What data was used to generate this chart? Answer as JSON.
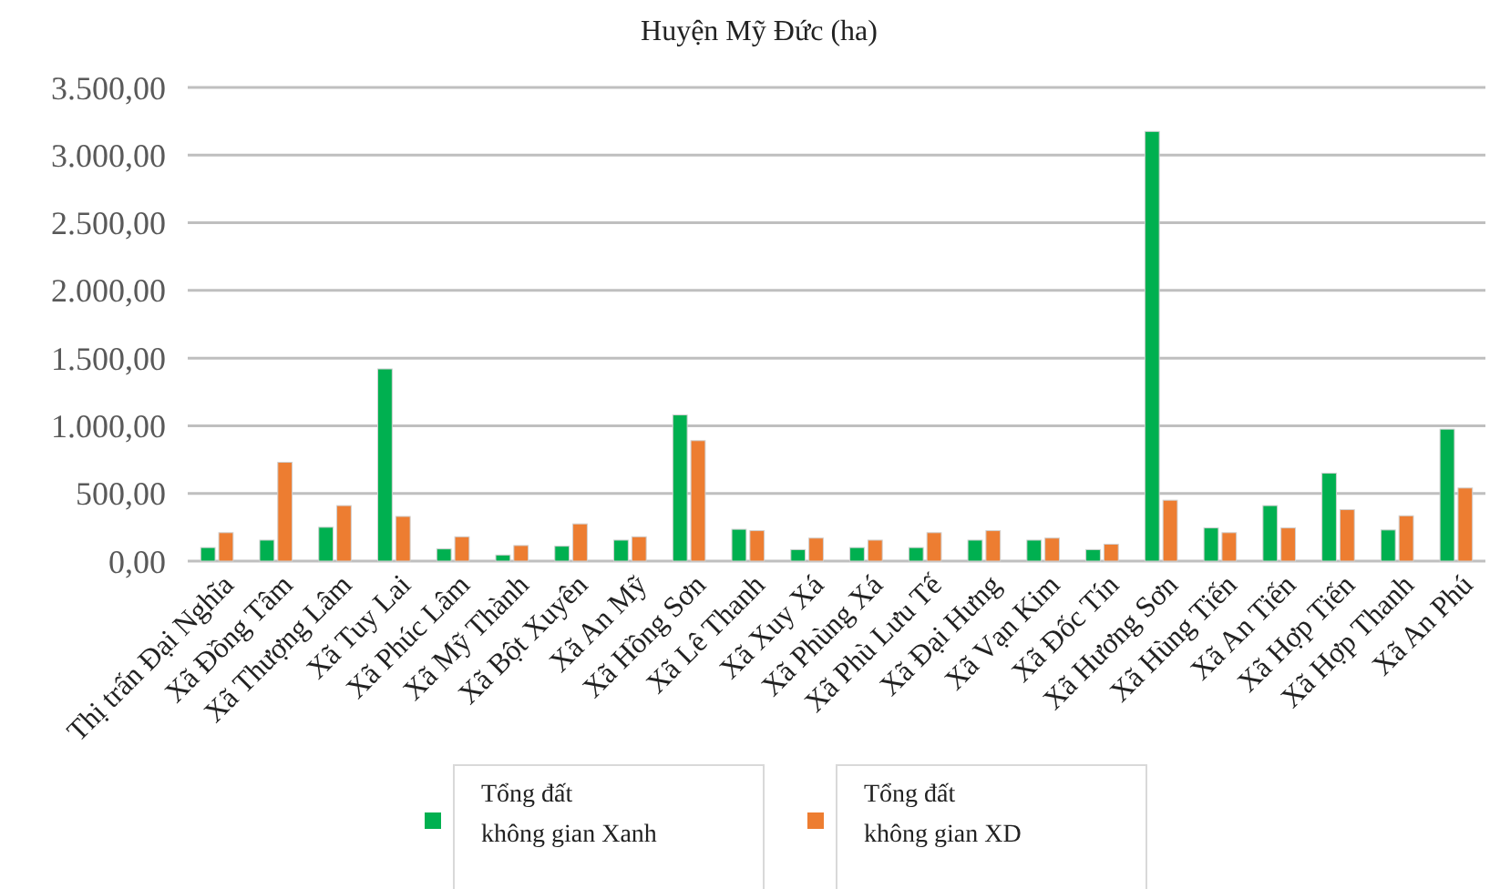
{
  "chart_data": {
    "type": "bar",
    "title": "Huyện Mỹ Đức (ha)",
    "categories": [
      "Thị trấn Đại Nghĩa",
      "Xã Đồng Tâm",
      "Xã Thượng Lâm",
      "Xã Tuy Lai",
      "Xã Phúc Lâm",
      "Xã Mỹ Thành",
      "Xã Bột Xuyên",
      "Xã An Mỹ",
      "Xã Hồng Sơn",
      "Xã Lê Thanh",
      "Xã Xuy Xá",
      "Xã Phùng Xá",
      "Xã Phù Lưu Tế",
      "Xã Đại Hưng",
      "Xã Vạn Kim",
      "Xã Đốc Tín",
      "Xã Hương Sơn",
      "Xã Hùng Tiến",
      "Xã An Tiến",
      "Xã Hợp Tiến",
      "Xã Hợp Thanh",
      "Xã An Phú"
    ],
    "series": [
      {
        "name": "Tổng đất\nkhông gian Xanh",
        "color": "#00b050",
        "values": [
          100,
          155,
          250,
          1420,
          90,
          45,
          110,
          155,
          1080,
          235,
          85,
          100,
          100,
          155,
          155,
          85,
          3175,
          245,
          410,
          650,
          230,
          975
        ]
      },
      {
        "name": "Tổng đất\nkhông gian XD",
        "color": "#ed7d31",
        "values": [
          210,
          730,
          410,
          330,
          180,
          115,
          275,
          180,
          890,
          225,
          170,
          155,
          210,
          225,
          170,
          125,
          450,
          210,
          245,
          380,
          335,
          540
        ]
      }
    ],
    "ylim": [
      0,
      3500
    ],
    "yticks": [
      {
        "value": 0,
        "label": "0,00"
      },
      {
        "value": 500,
        "label": "500,00"
      },
      {
        "value": 1000,
        "label": "1.000,00"
      },
      {
        "value": 1500,
        "label": "1.500,00"
      },
      {
        "value": 2000,
        "label": "2.000,00"
      },
      {
        "value": 2500,
        "label": "2.500,00"
      },
      {
        "value": 3000,
        "label": "3.000,00"
      },
      {
        "value": 3500,
        "label": "3.500,00"
      }
    ],
    "grid": "y",
    "legend": "bottom"
  }
}
